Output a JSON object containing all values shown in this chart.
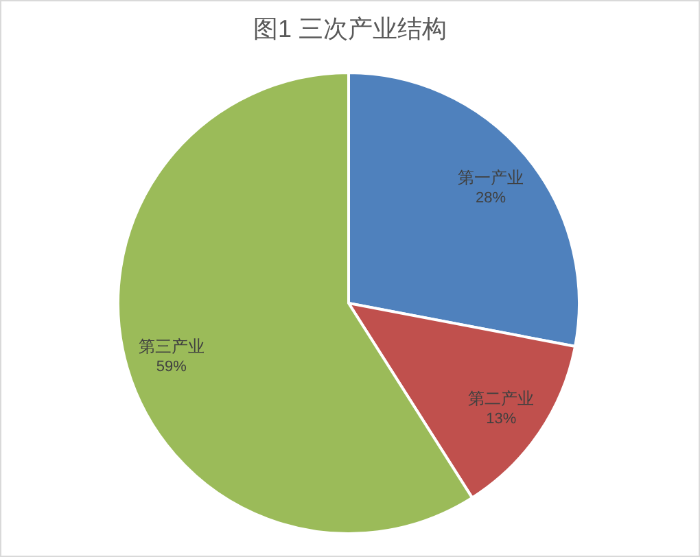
{
  "chart_data": {
    "type": "pie",
    "title": "图1  三次产业结构",
    "categories": [
      "第一产业",
      "第二产业",
      "第三产业"
    ],
    "values": [
      28,
      13,
      59
    ],
    "value_labels": [
      "28%",
      "13%",
      "59%"
    ],
    "colors": [
      "#4f81bd",
      "#c0504d",
      "#9bbb59"
    ],
    "legend": false
  }
}
